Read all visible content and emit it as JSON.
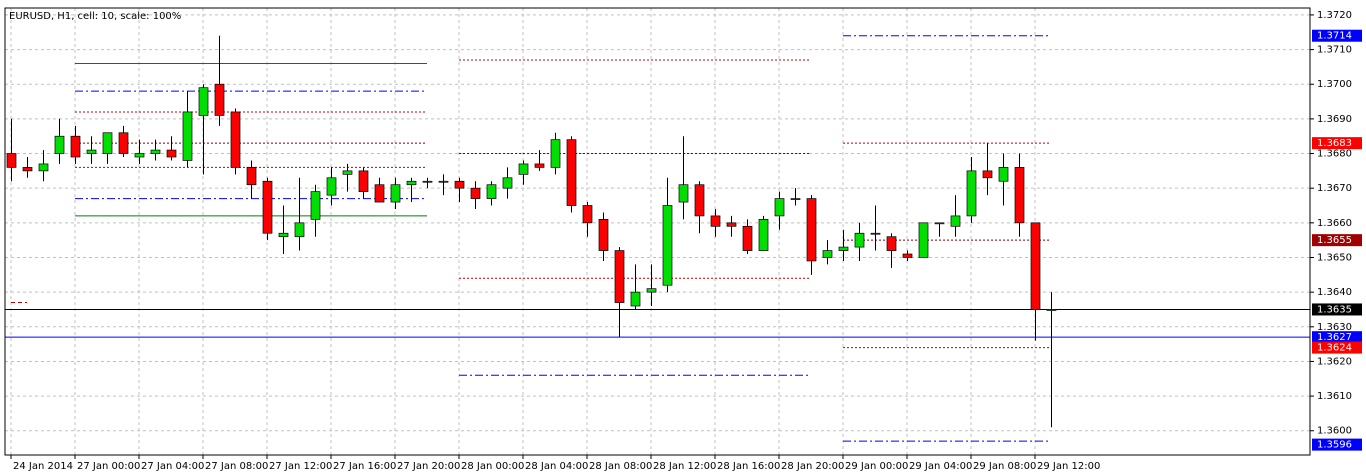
{
  "chart_data": {
    "type": "candlestick",
    "title": "EURUSD, H1, cell: 10, scale: 100%",
    "categories": [
      "24 Jan 2014",
      null,
      null,
      null,
      "27 Jan 00:00",
      null,
      null,
      null,
      "27 Jan 04:00",
      null,
      null,
      null,
      "27 Jan 08:00",
      null,
      null,
      null,
      "27 Jan 12:00",
      null,
      null,
      null,
      "27 Jan 16:00",
      null,
      null,
      null,
      "27 Jan 20:00",
      null,
      null,
      null,
      "28 Jan 00:00",
      null,
      null,
      null,
      "28 Jan 04:00",
      null,
      null,
      null,
      "28 Jan 08:00",
      null,
      null,
      null,
      "28 Jan 12:00",
      null,
      null,
      null,
      "28 Jan 16:00",
      null,
      null,
      null,
      "28 Jan 20:00",
      null,
      null,
      null,
      "29 Jan 00:00",
      null,
      null,
      null,
      "29 Jan 04:00",
      null,
      null,
      null,
      "29 Jan 08:00",
      null,
      null,
      null,
      "29 Jan 12:00",
      null
    ],
    "open": [
      1.368,
      1.3676,
      1.3675,
      1.368,
      1.3685,
      1.368,
      1.368,
      1.3686,
      1.3679,
      1.368,
      1.3681,
      1.3678,
      1.3691,
      1.37,
      1.3692,
      1.3676,
      1.3672,
      1.3656,
      1.3656,
      1.3661,
      1.3668,
      1.3674,
      1.3675,
      1.3671,
      1.3666,
      1.3671,
      1.3672,
      1.3672,
      1.3672,
      1.367,
      1.3667,
      1.367,
      1.3674,
      1.3677,
      1.3676,
      1.3684,
      1.3665,
      1.3661,
      1.3652,
      1.3636,
      1.364,
      1.3642,
      1.3666,
      1.3671,
      1.3662,
      1.366,
      1.3659,
      1.3652,
      1.3662,
      1.3667,
      1.3667,
      1.365,
      1.3652,
      1.3653,
      1.3657,
      1.3656,
      1.3651,
      1.365,
      1.366,
      1.3659,
      1.3662,
      1.3675,
      1.3672,
      1.3676,
      1.366,
      1.3635
    ],
    "high": [
      1.369,
      1.3679,
      1.3681,
      1.369,
      1.3688,
      1.3685,
      1.3686,
      1.3688,
      1.3684,
      1.3684,
      1.3685,
      1.3698,
      1.37,
      1.3714,
      1.3693,
      1.3678,
      1.3673,
      1.3665,
      1.3673,
      1.3671,
      1.3676,
      1.3677,
      1.3676,
      1.3673,
      1.3673,
      1.3673,
      1.3673,
      1.3674,
      1.3673,
      1.3672,
      1.3672,
      1.3676,
      1.3678,
      1.3681,
      1.3686,
      1.3685,
      1.3666,
      1.3663,
      1.3653,
      1.3648,
      1.3648,
      1.3673,
      1.3685,
      1.3672,
      1.3664,
      1.3662,
      1.3661,
      1.3662,
      1.3669,
      1.367,
      1.3668,
      1.3655,
      1.3658,
      1.366,
      1.3665,
      1.3657,
      1.3652,
      1.366,
      1.366,
      1.3668,
      1.3679,
      1.3683,
      1.368,
      1.368,
      1.366,
      1.364
    ],
    "low": [
      1.3672,
      1.3673,
      1.3672,
      1.3677,
      1.3677,
      1.3677,
      1.3677,
      1.3679,
      1.3677,
      1.3678,
      1.3678,
      1.3676,
      1.3674,
      1.3688,
      1.3674,
      1.3667,
      1.3655,
      1.3651,
      1.3652,
      1.3656,
      1.3665,
      1.3669,
      1.3667,
      1.3666,
      1.3664,
      1.3666,
      1.367,
      1.3668,
      1.3666,
      1.3664,
      1.3665,
      1.3667,
      1.3671,
      1.3675,
      1.3674,
      1.3663,
      1.3656,
      1.3649,
      1.3627,
      1.3635,
      1.3636,
      1.364,
      1.3661,
      1.3657,
      1.3656,
      1.3656,
      1.3651,
      1.3652,
      1.3658,
      1.3665,
      1.3645,
      1.3648,
      1.3649,
      1.3649,
      1.3652,
      1.3647,
      1.3649,
      1.365,
      1.3656,
      1.3656,
      1.366,
      1.3668,
      1.3665,
      1.3656,
      1.3626,
      1.3601
    ],
    "close": [
      1.3676,
      1.3675,
      1.3677,
      1.3685,
      1.3679,
      1.3681,
      1.3686,
      1.368,
      1.368,
      1.3681,
      1.3679,
      1.3692,
      1.3699,
      1.3691,
      1.3676,
      1.3671,
      1.3657,
      1.3657,
      1.366,
      1.3669,
      1.3673,
      1.3675,
      1.3669,
      1.3666,
      1.3671,
      1.3672,
      1.3672,
      1.3672,
      1.367,
      1.3667,
      1.3671,
      1.3673,
      1.3677,
      1.3676,
      1.3684,
      1.3665,
      1.366,
      1.3652,
      1.3637,
      1.364,
      1.3641,
      1.3665,
      1.3671,
      1.3662,
      1.3659,
      1.3659,
      1.3652,
      1.3661,
      1.3667,
      1.3667,
      1.3649,
      1.3652,
      1.3653,
      1.3657,
      1.3657,
      1.3652,
      1.365,
      1.366,
      1.366,
      1.3662,
      1.3675,
      1.3673,
      1.3676,
      1.366,
      1.3635,
      1.3635
    ],
    "up_color": "#00e000",
    "down_color": "#ff0000",
    "ylim": [
      1.3593,
      1.3722
    ],
    "yticks": [
      {
        "value": 1.36,
        "label": "1.3600"
      },
      {
        "value": 1.361,
        "label": "1.3610"
      },
      {
        "value": 1.362,
        "label": "1.3620"
      },
      {
        "value": 1.363,
        "label": "1.3630"
      },
      {
        "value": 1.364,
        "label": "1.3640"
      },
      {
        "value": 1.365,
        "label": "1.3650"
      },
      {
        "value": 1.366,
        "label": "1.3660"
      },
      {
        "value": 1.367,
        "label": "1.3670"
      },
      {
        "value": 1.368,
        "label": "1.3680"
      },
      {
        "value": 1.369,
        "label": "1.3690"
      },
      {
        "value": 1.37,
        "label": "1.3700"
      },
      {
        "value": 1.371,
        "label": "1.3710"
      },
      {
        "value": 1.372,
        "label": "1.3720"
      }
    ],
    "grid": true,
    "levels": [
      {
        "value": 1.3706,
        "color": "#008000",
        "style": "solid",
        "start": 4,
        "end": 26
      },
      {
        "value": 1.3662,
        "color": "#008000",
        "style": "solid",
        "start": 4,
        "end": 26
      },
      {
        "value": 1.3698,
        "color": "#0000ff",
        "style": "dashdot",
        "start": 4,
        "end": 26
      },
      {
        "value": 1.3667,
        "color": "#0000ff",
        "style": "dashdot",
        "start": 4,
        "end": 26
      },
      {
        "value": 1.3692,
        "color": "#c00000",
        "style": "dot",
        "start": 4,
        "end": 26
      },
      {
        "value": 1.3683,
        "color": "#800000",
        "style": "dot",
        "start": 4,
        "end": 26
      },
      {
        "value": 1.3676,
        "color": "#c00000",
        "style": "dot",
        "start": 4,
        "end": 26
      },
      {
        "value": 1.3707,
        "color": "#c00000",
        "style": "dot",
        "start": 28,
        "end": 50
      },
      {
        "value": 1.368,
        "color": "#800000",
        "style": "dot",
        "start": 28,
        "end": 50
      },
      {
        "value": 1.3644,
        "color": "#c00000",
        "style": "dot",
        "start": 28,
        "end": 50
      },
      {
        "value": 1.3616,
        "color": "#0000ff",
        "style": "dashdot",
        "start": 28,
        "end": 50
      },
      {
        "value": 1.3714,
        "color": "#0000ff",
        "style": "dashdot",
        "start": 52,
        "end": 65
      },
      {
        "value": 1.3597,
        "color": "#0000ff",
        "style": "dashdot",
        "start": 52,
        "end": 65
      },
      {
        "value": 1.3683,
        "color": "#c00000",
        "style": "dot",
        "start": 52,
        "end": 65
      },
      {
        "value": 1.3655,
        "color": "#800000",
        "style": "dot",
        "start": 52,
        "end": 65
      },
      {
        "value": 1.3624,
        "color": "#c00000",
        "style": "dot",
        "start": 52,
        "end": 65
      },
      {
        "value": 1.3637,
        "color": "#c00000",
        "style": "dash",
        "start": 0,
        "end": 1
      },
      {
        "value": 1.3635,
        "color": "#000000",
        "style": "solid"
      },
      {
        "value": 1.3627,
        "color": "#0000ff",
        "style": "solid"
      }
    ],
    "markers": [
      {
        "value": 1.3714,
        "color": "#0000ff"
      },
      {
        "value": 1.3683,
        "color": "#ff0000"
      },
      {
        "value": 1.3655,
        "color": "#a00000"
      },
      {
        "value": 1.3635,
        "color": "#000000"
      },
      {
        "value": 1.3627,
        "color": "#0000ff"
      },
      {
        "value": 1.3624,
        "color": "#ff0000"
      },
      {
        "value": 1.3596,
        "color": "#0000ff"
      }
    ]
  }
}
